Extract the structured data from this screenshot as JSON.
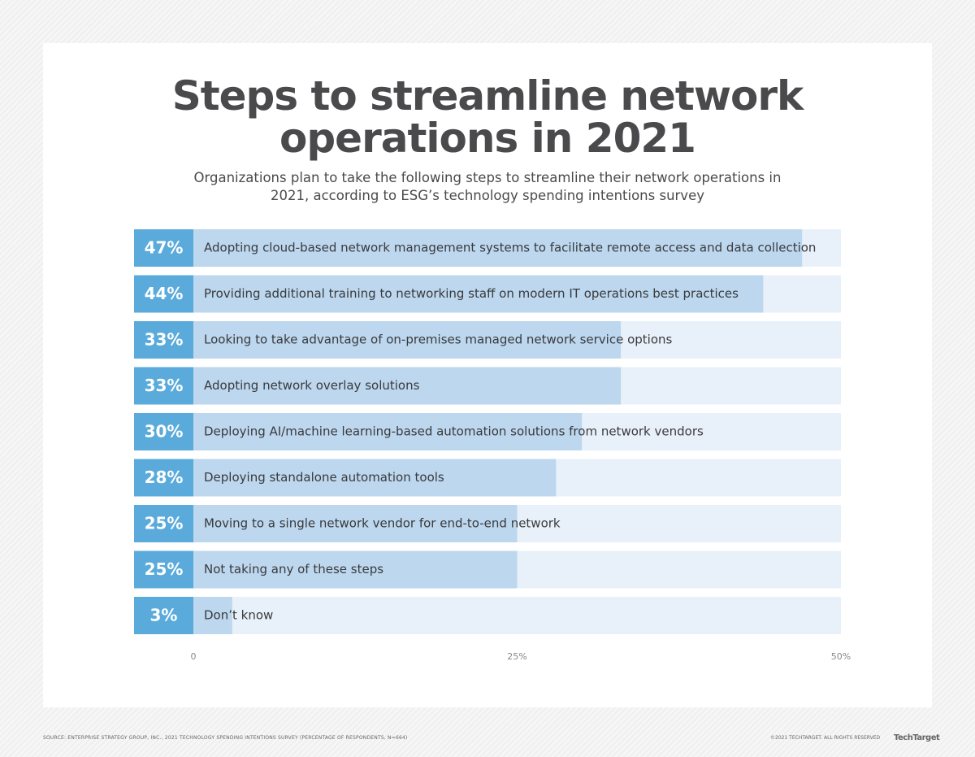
{
  "chart_data": {
    "type": "bar",
    "orientation": "horizontal",
    "title": "Steps to streamline network operations in 2021",
    "subtitle": "Organizations plan to take the following steps to streamline their network operations in 2021, according to ESG’s technology spending intentions survey",
    "categories": [
      "Adopting cloud-based network management systems to facilitate remote access and data collection",
      "Providing additional training to networking staff on modern IT operations best practices",
      "Looking to take advantage of on-premises managed network service options",
      "Adopting network overlay solutions",
      "Deploying AI/machine learning-based automation solutions from network vendors",
      "Deploying standalone automation tools",
      "Moving to a single network vendor for end-to-end network",
      "Not taking any of these steps",
      "Don’t know"
    ],
    "values": [
      47,
      44,
      33,
      33,
      30,
      28,
      25,
      25,
      3
    ],
    "value_labels": [
      "47%",
      "44%",
      "33%",
      "33%",
      "30%",
      "28%",
      "25%",
      "25%",
      "3%"
    ],
    "color": "#bcd7ee",
    "track_color": "#e8f1fa",
    "label_box_color": "#5aabdb",
    "xlim": [
      0,
      50
    ],
    "xticks": [
      0,
      {
        "value": 25,
        "label": "25%"
      },
      {
        "value": 50,
        "label": "50%"
      }
    ],
    "source": "SOURCE:  ENTERPRISE STRATEGY GROUP, INC., 2021 TECHNOLOGY SPENDING INTENTIONS SURVEY (PERCENTAGE OF RESPONDENTS, N=664)",
    "copyright": "©2021 TECHTARGET. ALL RIGHTS RESERVED",
    "logo": "TechTarget"
  }
}
